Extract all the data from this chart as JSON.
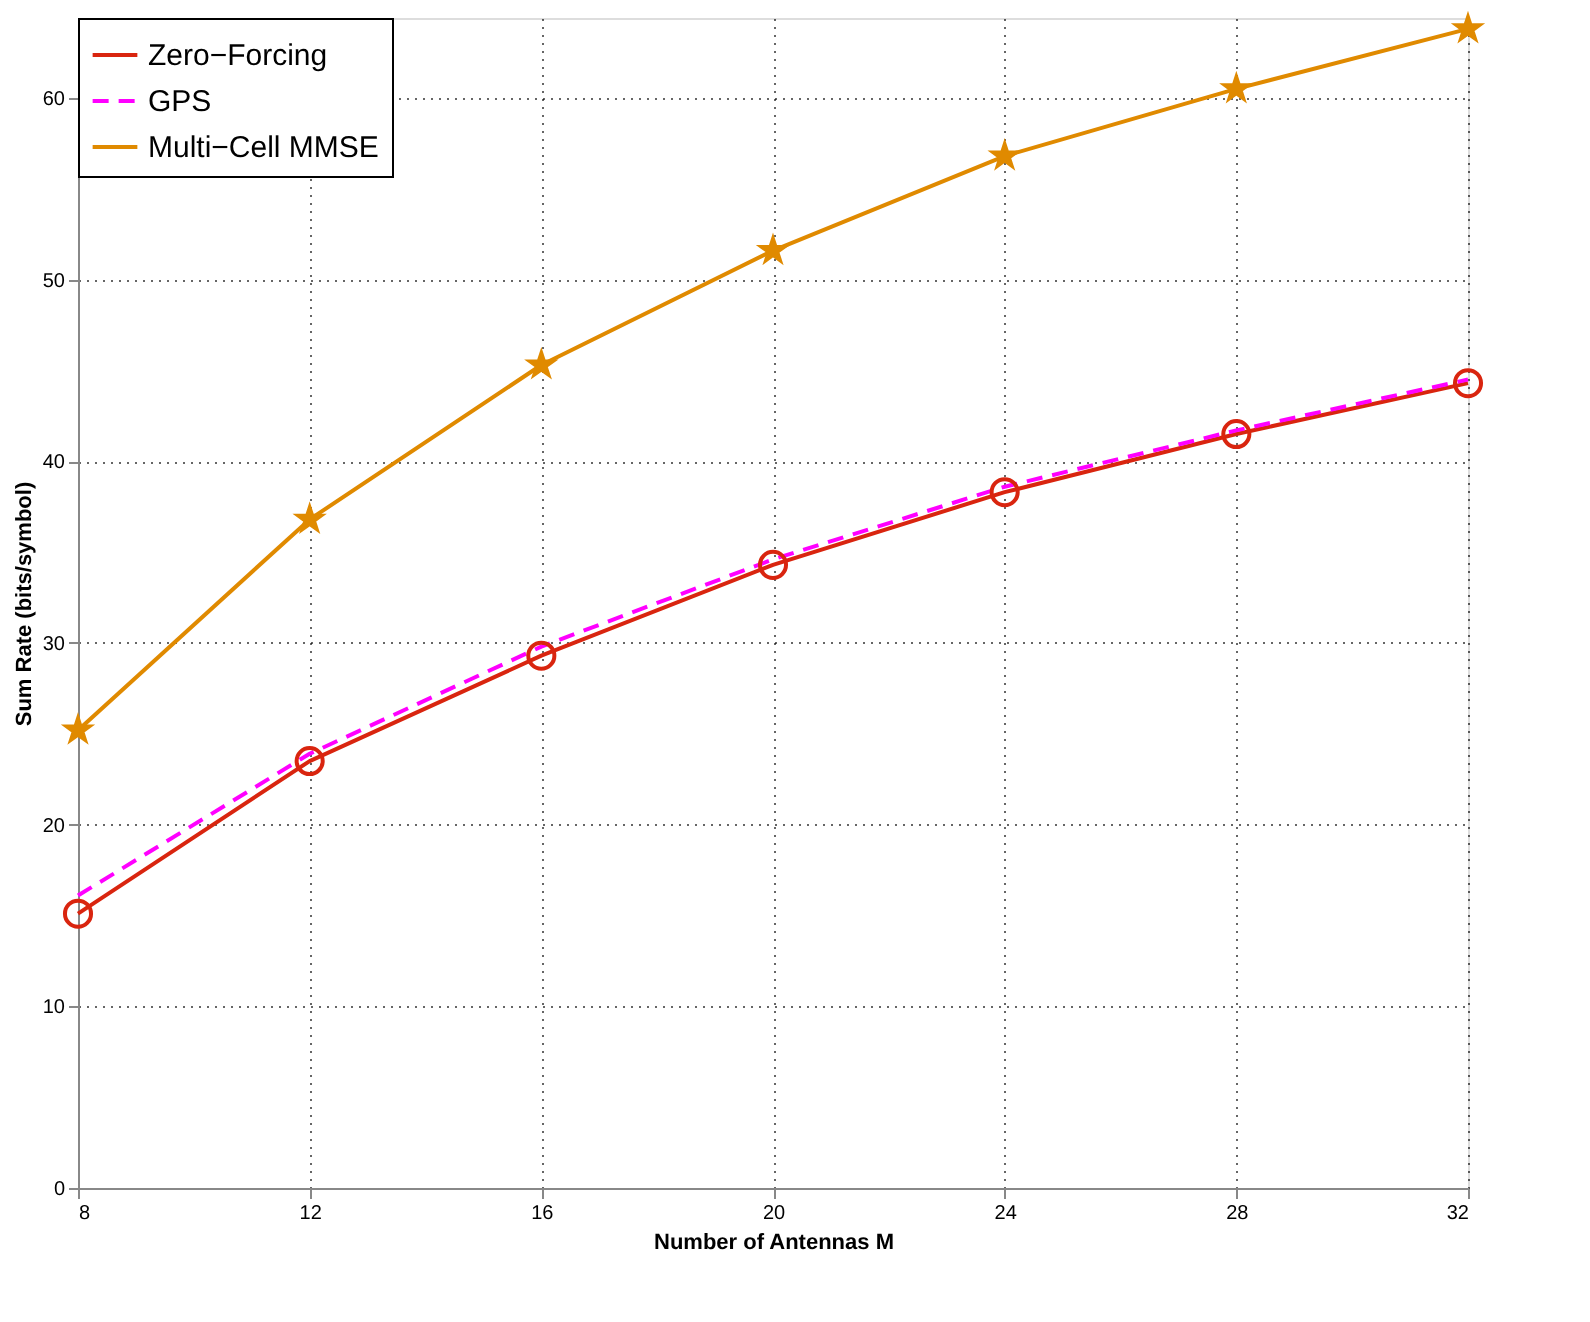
{
  "chart_data": {
    "type": "line",
    "xlabel": "Number of Antennas M",
    "ylabel": "Sum Rate (bits/symbol)",
    "x": [
      8,
      12,
      16,
      20,
      24,
      28,
      32
    ],
    "series": [
      {
        "name": "Zero−Forcing",
        "color": "#d9250f",
        "marker": "circle",
        "line_style": "solid",
        "values": [
          15.1,
          23.5,
          29.3,
          34.3,
          38.3,
          41.5,
          44.3
        ]
      },
      {
        "name": "GPS",
        "color": "#ff00ff",
        "marker": "none",
        "line_style": "dashed",
        "values": [
          16.1,
          23.9,
          29.8,
          34.6,
          38.6,
          41.7,
          44.5
        ]
      },
      {
        "name": "Multi−Cell MMSE",
        "color": "#e08a00",
        "marker": "star",
        "line_style": "solid",
        "values": [
          25.2,
          36.8,
          45.3,
          51.6,
          56.8,
          60.5,
          63.8
        ]
      }
    ],
    "xlim": [
      8,
      32
    ],
    "xticks": [
      8,
      12,
      16,
      20,
      24,
      28,
      32
    ],
    "ylim": [
      0,
      64.4
    ],
    "yticks": [
      0,
      10,
      20,
      30,
      40,
      50,
      60
    ],
    "grid": true,
    "legend": "top left"
  }
}
